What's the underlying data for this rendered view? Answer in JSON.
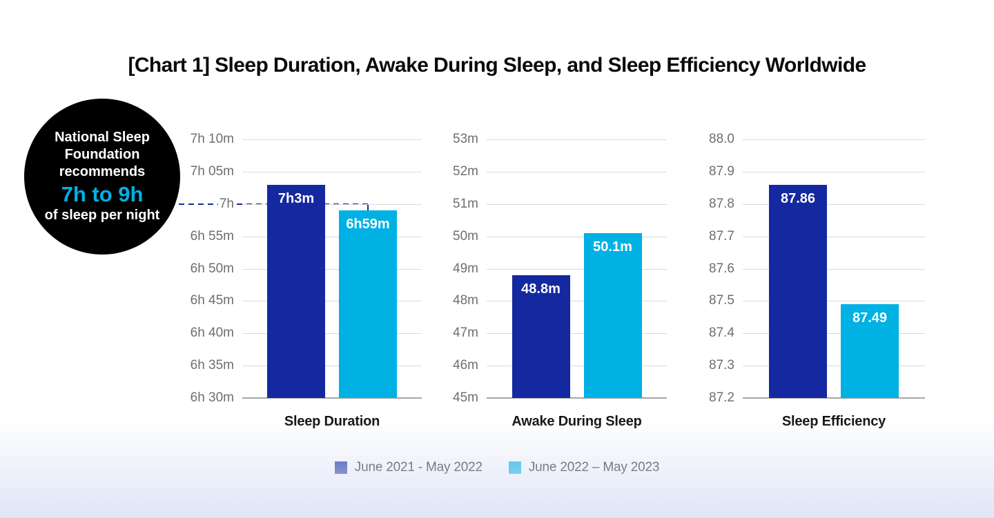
{
  "title": "[Chart 1] Sleep Duration, Awake During Sleep, and Sleep Efficiency Worldwide",
  "badge": {
    "lines": [
      "National Sleep",
      "Foundation",
      "recommends"
    ],
    "highlight": "7h to 9h",
    "footer": "of sleep per night",
    "bg_color": "#000000",
    "text_color": "#ffffff",
    "highlight_color": "#00b1e4"
  },
  "colors": {
    "series1": "#1429a0",
    "series2": "#00b1e4",
    "gridline": "#d9d9d9",
    "baseline": "#a6a6a6",
    "tick_text": "#6e6e6e",
    "reference_dash": "#1429a0",
    "bottom_gradient": "#dfe5f7"
  },
  "legend": [
    {
      "label": "June 2021 - May 2022",
      "color": "#1429a0"
    },
    {
      "label": "June 2022 – May 2023",
      "color": "#00b1e4"
    }
  ],
  "chart_data": [
    {
      "type": "bar",
      "title": "Sleep Duration",
      "y_ticks": [
        "7h 10m",
        "7h 05m",
        "7h",
        "6h 55m",
        "6h 50m",
        "6h 45m",
        "6h 40m",
        "6h 35m",
        "6h 30m"
      ],
      "ylim": [
        390,
        430
      ],
      "unit": "minutes",
      "series": [
        {
          "name": "June 2021 - May 2022",
          "value": 423,
          "label": "7h3m"
        },
        {
          "name": "June 2022 – May 2023",
          "value": 419,
          "label": "6h59m"
        }
      ],
      "reference_line": {
        "value": 420,
        "tick_label": "7h",
        "style": "dashed",
        "connects_to": "badge"
      }
    },
    {
      "type": "bar",
      "title": "Awake During Sleep",
      "y_ticks": [
        "53m",
        "52m",
        "51m",
        "50m",
        "49m",
        "48m",
        "47m",
        "46m",
        "45m"
      ],
      "ylim": [
        45,
        53
      ],
      "unit": "minutes",
      "series": [
        {
          "name": "June 2021 - May 2022",
          "value": 48.8,
          "label": "48.8m"
        },
        {
          "name": "June 2022 – May 2023",
          "value": 50.1,
          "label": "50.1m"
        }
      ]
    },
    {
      "type": "bar",
      "title": "Sleep Efficiency",
      "y_ticks": [
        "88.0",
        "87.9",
        "87.8",
        "87.7",
        "87.6",
        "87.5",
        "87.4",
        "87.3",
        "87.2"
      ],
      "ylim": [
        87.2,
        88.0
      ],
      "unit": "percent",
      "series": [
        {
          "name": "June 2021 - May 2022",
          "value": 87.86,
          "label": "87.86"
        },
        {
          "name": "June 2022 – May 2023",
          "value": 87.49,
          "label": "87.49"
        }
      ]
    }
  ]
}
